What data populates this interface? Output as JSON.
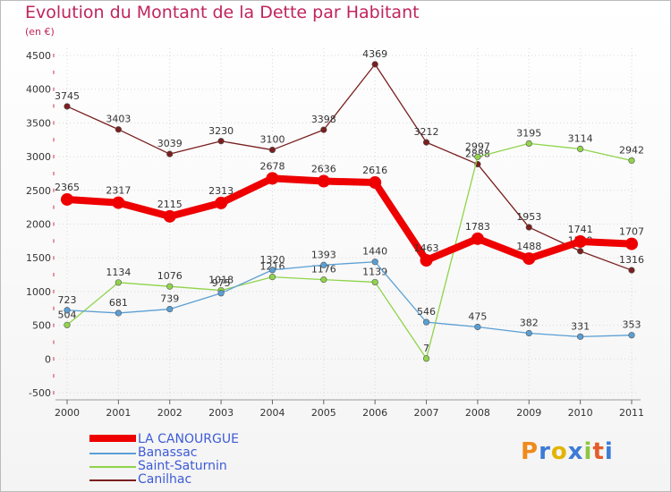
{
  "title": "Evolution du Montant de la Dette par Habitant",
  "subtitle": "(en €)",
  "logo_text": "Proxiti",
  "chart_data": {
    "type": "line",
    "title": "Evolution du Montant de la Dette par Habitant",
    "ylabel": "(en €)",
    "xlabel": "",
    "x": [
      "2000",
      "2001",
      "2002",
      "2003",
      "2004",
      "2005",
      "2006",
      "2007",
      "2008",
      "2009",
      "2010",
      "2011"
    ],
    "ylim": [
      -500,
      4500
    ],
    "yticks": [
      "-500",
      "0",
      "500",
      "1000",
      "1500",
      "2000",
      "2500",
      "3000",
      "3500",
      "4000",
      "4500"
    ],
    "grid": true,
    "legend_position": "bottom-left",
    "series": [
      {
        "name": "Canilhac",
        "color": "#7a1f1f",
        "values": [
          3745,
          3403,
          3039,
          3230,
          3100,
          3398,
          4369,
          3212,
          2888,
          1953,
          1599,
          1316
        ]
      },
      {
        "name": "Saint-Saturnin",
        "color": "#8fd44a",
        "values": [
          504,
          1134,
          1076,
          1018,
          1216,
          1176,
          1139,
          7,
          2997,
          3195,
          3114,
          2942
        ]
      },
      {
        "name": "Banassac",
        "color": "#5a9fd4",
        "values": [
          723,
          681,
          739,
          975,
          1320,
          1393,
          1440,
          546,
          475,
          382,
          331,
          353
        ]
      },
      {
        "name": "LA CANOURGUE",
        "color": "#ee0000",
        "values": [
          2365,
          2317,
          2115,
          2313,
          2678,
          2636,
          2616,
          1463,
          1783,
          1488,
          1741,
          1707
        ]
      }
    ],
    "legend": [
      "LA CANOURGUE",
      "Banassac",
      "Saint-Saturnin",
      "Canilhac"
    ]
  }
}
